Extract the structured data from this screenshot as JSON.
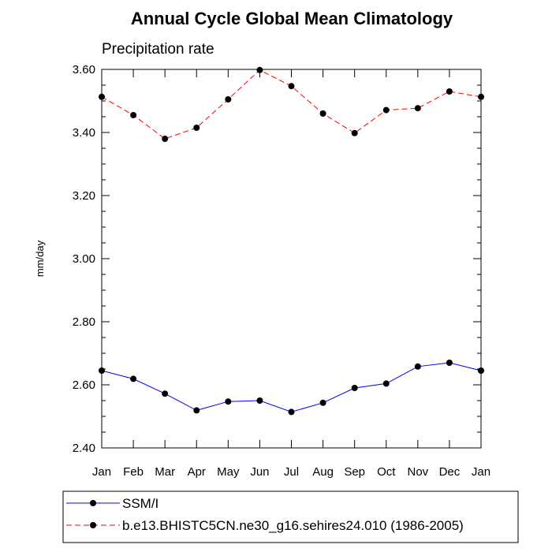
{
  "chart_data": {
    "type": "line",
    "title": "Annual Cycle Global Mean Climatology",
    "subtitle": "Precipitation rate",
    "ylabel": "mm/day",
    "xlabel": "",
    "categories": [
      "Jan",
      "Feb",
      "Mar",
      "Apr",
      "May",
      "Jun",
      "Jul",
      "Aug",
      "Sep",
      "Oct",
      "Nov",
      "Dec",
      "Jan"
    ],
    "ylim": [
      2.4,
      3.6
    ],
    "yticks": [
      "2.40",
      "2.60",
      "2.80",
      "3.00",
      "3.20",
      "3.40",
      "3.60"
    ],
    "grid": false,
    "legend_position": "bottom",
    "series": [
      {
        "name": "SSM/I",
        "color": "#0000ff",
        "dash": "solid",
        "values": [
          2.645,
          2.619,
          2.572,
          2.519,
          2.547,
          2.55,
          2.514,
          2.543,
          2.59,
          2.604,
          2.658,
          2.67,
          2.645
        ]
      },
      {
        "name": "b.e13.BHISTC5CN.ne30_g16.sehires24.010 (1986-2005)",
        "color": "#ff0000",
        "dash": "dashed",
        "values": [
          3.513,
          3.455,
          3.38,
          3.415,
          3.505,
          3.598,
          3.547,
          3.46,
          3.398,
          3.471,
          3.477,
          3.53,
          3.513
        ]
      }
    ]
  }
}
